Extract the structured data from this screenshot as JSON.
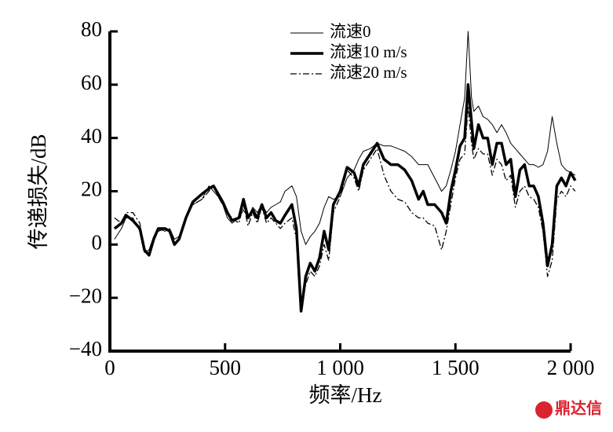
{
  "chart_data": {
    "type": "line",
    "x_label": "频率/Hz",
    "y_label": "传递损失/dB",
    "watermark": "鼎达信",
    "x": [
      20,
      50,
      70,
      100,
      130,
      150,
      170,
      190,
      210,
      240,
      260,
      280,
      300,
      330,
      360,
      400,
      430,
      450,
      470,
      490,
      510,
      530,
      560,
      580,
      600,
      620,
      640,
      660,
      680,
      700,
      720,
      740,
      760,
      790,
      810,
      830,
      850,
      870,
      890,
      910,
      930,
      950,
      970,
      1000,
      1030,
      1060,
      1080,
      1100,
      1130,
      1160,
      1190,
      1220,
      1250,
      1280,
      1310,
      1340,
      1360,
      1380,
      1410,
      1440,
      1460,
      1480,
      1500,
      1520,
      1540,
      1555,
      1570,
      1580,
      1600,
      1620,
      1640,
      1660,
      1680,
      1700,
      1720,
      1740,
      1760,
      1780,
      1800,
      1820,
      1840,
      1860,
      1880,
      1900,
      1920,
      1940,
      1960,
      1980,
      2000,
      2020
    ],
    "series": [
      {
        "name": "流速0",
        "color": "#000000",
        "style": "thin",
        "values": [
          2,
          6,
          10,
          10,
          5,
          -3,
          -2,
          3,
          6,
          5,
          6,
          2,
          3,
          10,
          15,
          17,
          22,
          20,
          18,
          15,
          10,
          8,
          10,
          13,
          10,
          14,
          12,
          15,
          12,
          14,
          15,
          16,
          20,
          22,
          18,
          5,
          0,
          3,
          5,
          8,
          14,
          18,
          17,
          18,
          25,
          28,
          32,
          35,
          36,
          38,
          37,
          37,
          36,
          35,
          33,
          30,
          30,
          30,
          25,
          20,
          22,
          28,
          35,
          45,
          55,
          80,
          55,
          50,
          52,
          48,
          47,
          45,
          42,
          45,
          42,
          38,
          36,
          34,
          32,
          30,
          30,
          29,
          30,
          35,
          48,
          38,
          30,
          28,
          27,
          26
        ]
      },
      {
        "name": "流速10 m/s",
        "color": "#000000",
        "style": "thick",
        "values": [
          6,
          8,
          11,
          9,
          6,
          -2,
          -4,
          2,
          6,
          6,
          5,
          0,
          2,
          10,
          16,
          19,
          21,
          22,
          19,
          16,
          12,
          9,
          10,
          17,
          10,
          13,
          10,
          15,
          10,
          12,
          9,
          8,
          11,
          15,
          6,
          -25,
          -12,
          -7,
          -10,
          -5,
          5,
          -2,
          15,
          20,
          29,
          27,
          22,
          30,
          34,
          38,
          32,
          30,
          30,
          28,
          24,
          17,
          20,
          15,
          15,
          12,
          8,
          20,
          28,
          37,
          40,
          60,
          46,
          36,
          45,
          40,
          40,
          30,
          38,
          38,
          30,
          32,
          18,
          28,
          30,
          22,
          22,
          18,
          8,
          -8,
          0,
          22,
          25,
          22,
          27,
          24
        ]
      },
      {
        "name": "流速20 m/s",
        "color": "#000000",
        "style": "dash-dot",
        "values": [
          10,
          8,
          12,
          12,
          8,
          -3,
          -4,
          2,
          5,
          6,
          5,
          0,
          2,
          10,
          15,
          17,
          20,
          22,
          18,
          15,
          12,
          10,
          8,
          15,
          7,
          12,
          8,
          14,
          8,
          10,
          8,
          6,
          8,
          10,
          2,
          -22,
          -15,
          -10,
          -12,
          -8,
          0,
          -6,
          12,
          18,
          28,
          25,
          20,
          28,
          32,
          36,
          26,
          20,
          17,
          16,
          12,
          10,
          10,
          8,
          7,
          -2,
          5,
          15,
          25,
          32,
          34,
          52,
          38,
          32,
          36,
          34,
          34,
          26,
          32,
          30,
          24,
          26,
          14,
          20,
          22,
          18,
          17,
          14,
          5,
          -12,
          -6,
          17,
          20,
          18,
          22,
          20
        ]
      }
    ],
    "xlim": [
      0,
      2000
    ],
    "xticks": [
      0,
      500,
      {
        "value": 1000,
        "label": "1 000"
      },
      {
        "value": 1500,
        "label": "1 500"
      },
      {
        "value": 2000,
        "label": "2 000"
      }
    ],
    "ylim": [
      -40,
      80
    ],
    "yticks": [
      {
        "value": -40,
        "label": "−40"
      },
      {
        "value": -20,
        "label": "−20"
      },
      0,
      20,
      40,
      60,
      80
    ],
    "grid": false,
    "legend_position": "top-center"
  }
}
